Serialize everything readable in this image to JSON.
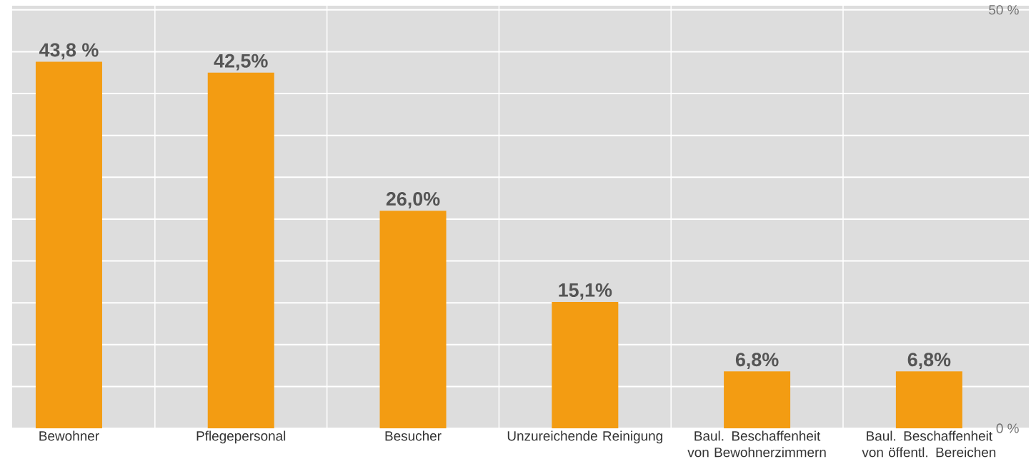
{
  "chart_data": {
    "type": "bar",
    "categories": [
      "Bewohner",
      "Pflegepersonal",
      "Besucher",
      "Unzureichende Reinigung",
      "Baul. Beschaffenheit von Bewohnerzimmern",
      "Baul. Beschaffenheit von öffentl. Bereichen"
    ],
    "values": [
      43.8,
      42.5,
      26.0,
      15.1,
      6.8,
      6.8
    ],
    "value_labels": [
      "43,8 %",
      "42,5%",
      "26,0%",
      "15,1%",
      "6,8%",
      "6,8%"
    ],
    "color": "#f39c12",
    "ylim": [
      0,
      50.5
    ],
    "yticks": [
      {
        "value": 0,
        "label": "0 %"
      },
      {
        "value": 5,
        "label": null
      },
      {
        "value": 10,
        "label": null
      },
      {
        "value": 15,
        "label": null
      },
      {
        "value": 20,
        "label": null
      },
      {
        "value": 25,
        "label": null
      },
      {
        "value": 30,
        "label": null
      },
      {
        "value": 35,
        "label": null
      },
      {
        "value": 40,
        "label": null
      },
      {
        "value": 45,
        "label": null
      },
      {
        "value": 50,
        "label": "50 %"
      }
    ],
    "grid": true
  }
}
